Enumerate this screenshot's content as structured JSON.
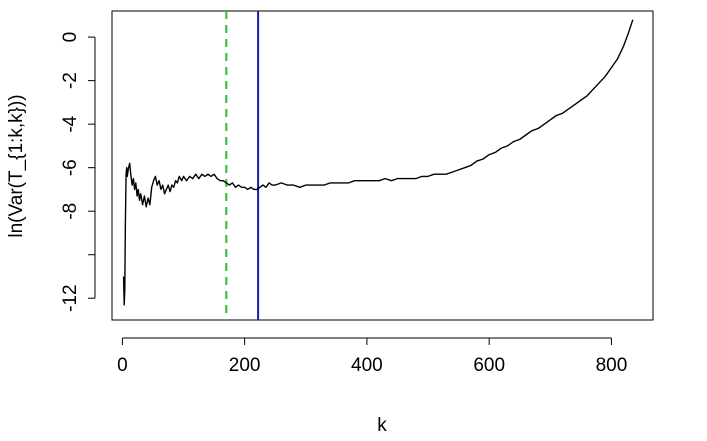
{
  "chart_data": {
    "type": "line",
    "title": "",
    "xlabel": "k",
    "ylabel": "ln(Var(T_{1:k,k}))",
    "xlim": [
      -17,
      868
    ],
    "ylim": [
      -13.0,
      1.2
    ],
    "grid": false,
    "legend": "none",
    "x_ticks": [
      {
        "value": 0,
        "label": "0"
      },
      {
        "value": 200,
        "label": "200"
      },
      {
        "value": 400,
        "label": "400"
      },
      {
        "value": 600,
        "label": "600"
      },
      {
        "value": 800,
        "label": "800"
      }
    ],
    "y_ticks": [
      {
        "value": -12,
        "label": "-12"
      },
      {
        "value": -10,
        "label": ""
      },
      {
        "value": -8,
        "label": "-8"
      },
      {
        "value": -6,
        "label": "-6"
      },
      {
        "value": -4,
        "label": "-4"
      },
      {
        "value": -2,
        "label": "-2"
      },
      {
        "value": 0,
        "label": "0"
      }
    ],
    "vlines": [
      {
        "x": 170,
        "color": "#33bb33",
        "style": "dashed"
      },
      {
        "x": 222,
        "color": "#1a1aaa",
        "style": "solid"
      }
    ],
    "series": [
      {
        "color": "#000000",
        "points": [
          [
            2,
            -11
          ],
          [
            3,
            -12.3
          ],
          [
            4,
            -11.6
          ],
          [
            5,
            -8.5
          ],
          [
            6,
            -6.3
          ],
          [
            7,
            -6.0
          ],
          [
            8,
            -6.4
          ],
          [
            10,
            -6.0
          ],
          [
            12,
            -5.8
          ],
          [
            14,
            -6.4
          ],
          [
            16,
            -6.8
          ],
          [
            18,
            -6.5
          ],
          [
            20,
            -7.0
          ],
          [
            22,
            -6.7
          ],
          [
            24,
            -7.3
          ],
          [
            26,
            -7.0
          ],
          [
            28,
            -7.5
          ],
          [
            30,
            -7.2
          ],
          [
            33,
            -7.7
          ],
          [
            36,
            -7.3
          ],
          [
            39,
            -7.8
          ],
          [
            42,
            -7.4
          ],
          [
            45,
            -7.7
          ],
          [
            48,
            -6.9
          ],
          [
            51,
            -6.6
          ],
          [
            54,
            -6.4
          ],
          [
            57,
            -6.8
          ],
          [
            60,
            -6.6
          ],
          [
            63,
            -7.0
          ],
          [
            66,
            -6.8
          ],
          [
            69,
            -7.2
          ],
          [
            72,
            -7.0
          ],
          [
            75,
            -6.8
          ],
          [
            78,
            -7.1
          ],
          [
            81,
            -6.8
          ],
          [
            84,
            -6.9
          ],
          [
            87,
            -6.6
          ],
          [
            90,
            -6.7
          ],
          [
            93,
            -6.4
          ],
          [
            97,
            -6.6
          ],
          [
            100,
            -6.4
          ],
          [
            105,
            -6.6
          ],
          [
            110,
            -6.4
          ],
          [
            115,
            -6.5
          ],
          [
            120,
            -6.3
          ],
          [
            125,
            -6.5
          ],
          [
            130,
            -6.3
          ],
          [
            135,
            -6.4
          ],
          [
            140,
            -6.3
          ],
          [
            145,
            -6.4
          ],
          [
            150,
            -6.3
          ],
          [
            155,
            -6.5
          ],
          [
            160,
            -6.6
          ],
          [
            165,
            -6.6
          ],
          [
            170,
            -6.7
          ],
          [
            175,
            -6.8
          ],
          [
            180,
            -6.7
          ],
          [
            185,
            -6.9
          ],
          [
            190,
            -6.8
          ],
          [
            195,
            -6.9
          ],
          [
            200,
            -6.9
          ],
          [
            205,
            -7.0
          ],
          [
            210,
            -6.9
          ],
          [
            215,
            -7.0
          ],
          [
            220,
            -7.0
          ],
          [
            225,
            -6.9
          ],
          [
            230,
            -6.8
          ],
          [
            235,
            -6.9
          ],
          [
            240,
            -6.7
          ],
          [
            245,
            -6.8
          ],
          [
            250,
            -6.8
          ],
          [
            260,
            -6.7
          ],
          [
            270,
            -6.8
          ],
          [
            280,
            -6.8
          ],
          [
            290,
            -6.9
          ],
          [
            300,
            -6.8
          ],
          [
            310,
            -6.8
          ],
          [
            320,
            -6.8
          ],
          [
            330,
            -6.8
          ],
          [
            340,
            -6.7
          ],
          [
            350,
            -6.7
          ],
          [
            360,
            -6.7
          ],
          [
            370,
            -6.7
          ],
          [
            380,
            -6.6
          ],
          [
            390,
            -6.6
          ],
          [
            400,
            -6.6
          ],
          [
            410,
            -6.6
          ],
          [
            420,
            -6.6
          ],
          [
            430,
            -6.5
          ],
          [
            440,
            -6.6
          ],
          [
            450,
            -6.5
          ],
          [
            460,
            -6.5
          ],
          [
            470,
            -6.5
          ],
          [
            480,
            -6.5
          ],
          [
            490,
            -6.4
          ],
          [
            500,
            -6.4
          ],
          [
            510,
            -6.3
          ],
          [
            520,
            -6.3
          ],
          [
            530,
            -6.3
          ],
          [
            540,
            -6.2
          ],
          [
            550,
            -6.1
          ],
          [
            560,
            -6.0
          ],
          [
            570,
            -5.9
          ],
          [
            580,
            -5.7
          ],
          [
            590,
            -5.6
          ],
          [
            600,
            -5.4
          ],
          [
            610,
            -5.3
          ],
          [
            620,
            -5.1
          ],
          [
            630,
            -5.0
          ],
          [
            640,
            -4.8
          ],
          [
            650,
            -4.7
          ],
          [
            660,
            -4.5
          ],
          [
            670,
            -4.3
          ],
          [
            680,
            -4.2
          ],
          [
            690,
            -4.0
          ],
          [
            700,
            -3.8
          ],
          [
            710,
            -3.6
          ],
          [
            720,
            -3.5
          ],
          [
            730,
            -3.3
          ],
          [
            740,
            -3.1
          ],
          [
            750,
            -2.9
          ],
          [
            760,
            -2.7
          ],
          [
            770,
            -2.4
          ],
          [
            780,
            -2.1
          ],
          [
            790,
            -1.8
          ],
          [
            800,
            -1.4
          ],
          [
            810,
            -1.0
          ],
          [
            820,
            -0.4
          ],
          [
            828,
            0.2
          ],
          [
            835,
            0.8
          ]
        ]
      }
    ]
  }
}
